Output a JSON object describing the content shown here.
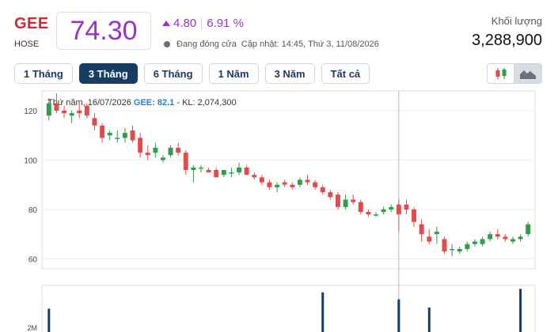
{
  "header": {
    "ticker": "GEE",
    "exchange": "HOSE",
    "price": "74.30",
    "change": "4.80",
    "change_pct": "6.91 %",
    "status": "Đang đóng cửa",
    "updated": "Cập nhật: 14:45, Thứ 3, 11/08/2026",
    "volume_label": "Khối lượng",
    "volume_value": "3,288,900"
  },
  "tabs": [
    {
      "label": "1 Tháng",
      "active": false
    },
    {
      "label": "3 Tháng",
      "active": true
    },
    {
      "label": "6 Tháng",
      "active": false
    },
    {
      "label": "1 Năm",
      "active": false
    },
    {
      "label": "3 Năm",
      "active": false
    },
    {
      "label": "Tất cả",
      "active": false
    }
  ],
  "chart_type_buttons": [
    {
      "icon": "candlestick-icon",
      "active": false
    },
    {
      "icon": "area-chart-icon",
      "active": true
    }
  ],
  "tooltip": {
    "prefix": "Thứ năm, 16/07/2026",
    "ticker_label": "GEE:",
    "value": "82.1",
    "volume_text": "- KL: 2,074,300"
  },
  "colors": {
    "up": "#2e9e4a",
    "down": "#e24b4b",
    "accent": "#9b32c8",
    "active_tab": "#173d63"
  },
  "chart_data": {
    "type": "candlestick",
    "y_ticks": [
      120,
      100,
      80,
      60
    ],
    "ylim": [
      56,
      128
    ],
    "volume_tick_label": "2M",
    "candles": [
      [
        118,
        125,
        116,
        123
      ],
      [
        123,
        127,
        119,
        120
      ],
      [
        120,
        122,
        117,
        119
      ],
      [
        118,
        120,
        115,
        119
      ],
      [
        120,
        124,
        117,
        119
      ],
      [
        122,
        123,
        117,
        118
      ],
      [
        117,
        119,
        112,
        114
      ],
      [
        114,
        115,
        107,
        109
      ],
      [
        110,
        112,
        108,
        111
      ],
      [
        109,
        112,
        107,
        109
      ],
      [
        109,
        113,
        107,
        111
      ],
      [
        112,
        114,
        107,
        108
      ],
      [
        109,
        111,
        101,
        103
      ],
      [
        103,
        106,
        100,
        102
      ],
      [
        103,
        107,
        101,
        105
      ],
      [
        100,
        102,
        99,
        101
      ],
      [
        102,
        106,
        101,
        105
      ],
      [
        105,
        107,
        102,
        103
      ],
      [
        103,
        104,
        94,
        96
      ],
      [
        96,
        98,
        91,
        97
      ],
      [
        97,
        98,
        95,
        97
      ],
      [
        96,
        97,
        95,
        95
      ],
      [
        96,
        97,
        93,
        93
      ],
      [
        94,
        96,
        93,
        96
      ],
      [
        95,
        97,
        93,
        95
      ],
      [
        95,
        99,
        94,
        97
      ],
      [
        97,
        98,
        94,
        94
      ],
      [
        94,
        95,
        92,
        93
      ],
      [
        93,
        94,
        90,
        91
      ],
      [
        91,
        92,
        88,
        89
      ],
      [
        89,
        91,
        87,
        90
      ],
      [
        91,
        92,
        89,
        90
      ],
      [
        90,
        91,
        88,
        89
      ],
      [
        90,
        93,
        89,
        92
      ],
      [
        92,
        94,
        90,
        91
      ],
      [
        91,
        92,
        88,
        89
      ],
      [
        89,
        90,
        86,
        87
      ],
      [
        87,
        88,
        84,
        85
      ],
      [
        86,
        87,
        80,
        81
      ],
      [
        81,
        86,
        80,
        84
      ],
      [
        84,
        86,
        82,
        83
      ],
      [
        83,
        84,
        78,
        79
      ],
      [
        79,
        80,
        77,
        78
      ],
      [
        78,
        79,
        77,
        78
      ],
      [
        79,
        81,
        78,
        80
      ],
      [
        80,
        82,
        79,
        81
      ],
      [
        82,
        84,
        71,
        78
      ],
      [
        82,
        84,
        78,
        80
      ],
      [
        80,
        81,
        73,
        75
      ],
      [
        74,
        76,
        67,
        70
      ],
      [
        69,
        72,
        66,
        67
      ],
      [
        70,
        73,
        66,
        71
      ],
      [
        68,
        69,
        62,
        63
      ],
      [
        64,
        66,
        61,
        64
      ],
      [
        63,
        65,
        62,
        64
      ],
      [
        64,
        67,
        63,
        66
      ],
      [
        66,
        68,
        65,
        67
      ],
      [
        66,
        69,
        65,
        68
      ],
      [
        68,
        71,
        67,
        70
      ],
      [
        70,
        72,
        68,
        69
      ],
      [
        69,
        70,
        67,
        68
      ],
      [
        67,
        69,
        66,
        68
      ],
      [
        68,
        70,
        67,
        69
      ],
      [
        70,
        75,
        69,
        74
      ]
    ],
    "volume_spikes": [
      [
        0,
        2.0
      ],
      [
        36,
        3.4
      ],
      [
        46,
        2.8
      ],
      [
        50,
        2.1
      ],
      [
        62,
        3.7
      ]
    ]
  }
}
